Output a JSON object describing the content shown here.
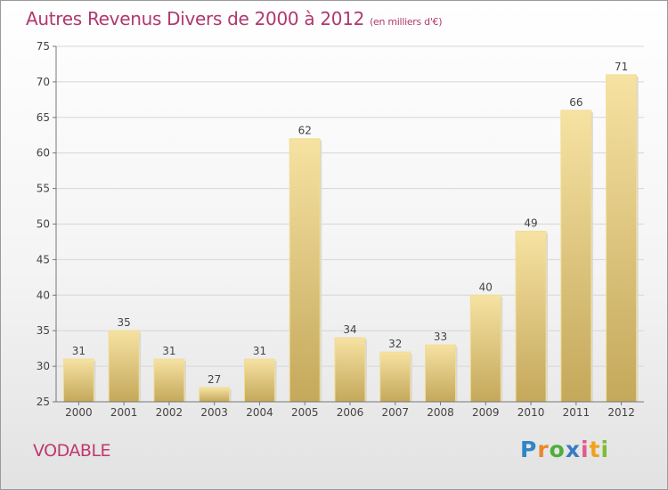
{
  "title": "Autres Revenus Divers de 2000 à 2012",
  "title_unit": "(en milliers d'€)",
  "location": "VODABLE",
  "brand": {
    "letters": [
      "P",
      "r",
      "o",
      "x",
      "i",
      "t",
      "i"
    ],
    "colors": [
      "#2f86c8",
      "#e8892a",
      "#4fae3d",
      "#3a7ac4",
      "#e35a8c",
      "#f0a21d",
      "#7bbd3a"
    ]
  },
  "colors": {
    "bar": "#dcc073",
    "bar_dark": "#c7a95b",
    "title": "#b0386e",
    "axis": "#555555"
  },
  "chart_data": {
    "type": "bar",
    "categories": [
      "2000",
      "2001",
      "2002",
      "2003",
      "2004",
      "2005",
      "2006",
      "2007",
      "2008",
      "2009",
      "2010",
      "2011",
      "2012"
    ],
    "values": [
      31,
      35,
      31,
      27,
      31,
      62,
      34,
      32,
      33,
      40,
      49,
      66,
      71
    ],
    "ylim": [
      25,
      75
    ],
    "yticks": [
      25,
      30,
      35,
      40,
      45,
      50,
      55,
      60,
      65,
      70,
      75
    ],
    "grid": true,
    "xlabel": "",
    "ylabel": ""
  }
}
